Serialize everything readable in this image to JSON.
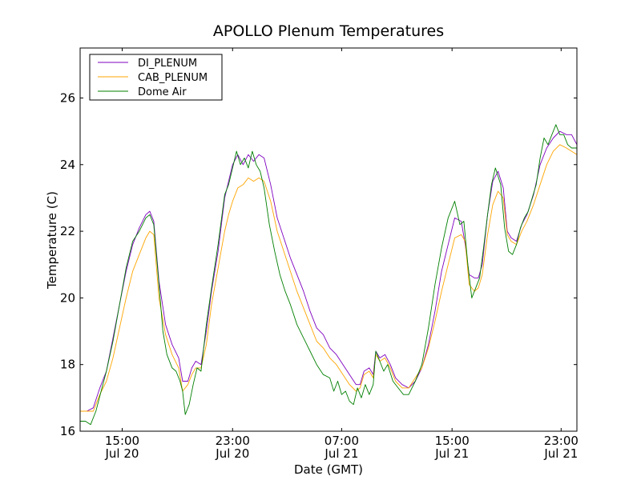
{
  "chart_data": {
    "type": "line",
    "title": "APOLLO Plenum Temperatures",
    "xlabel": "Date (GMT)",
    "ylabel": "Temperature (C)",
    "ylim": [
      16,
      27.5
    ],
    "xlim": [
      0,
      37.8
    ],
    "yticks": [
      16,
      18,
      20,
      22,
      24,
      26
    ],
    "xticks": [
      {
        "x": 3.2,
        "time": "15:00",
        "date": "Jul 20"
      },
      {
        "x": 11.6,
        "time": "23:00",
        "date": "Jul 20"
      },
      {
        "x": 19.9,
        "time": "07:00",
        "date": "Jul 21"
      },
      {
        "x": 28.3,
        "time": "15:00",
        "date": "Jul 21"
      },
      {
        "x": 36.6,
        "time": "23:00",
        "date": "Jul 21"
      }
    ],
    "legend_position": "top-left",
    "series": [
      {
        "name": "DI_PLENUM",
        "color": "#7f00bf",
        "x": [
          0,
          0.5,
          1,
          1.5,
          2,
          2.5,
          3,
          3.5,
          4,
          4.5,
          5,
          5.3,
          5.6,
          6,
          6.5,
          7,
          7.5,
          7.8,
          8.2,
          8.5,
          8.8,
          9.2,
          9.6,
          10,
          10.5,
          11,
          11.3,
          11.6,
          12,
          12.4,
          12.8,
          13.2,
          13.6,
          14,
          14.5,
          15,
          15.5,
          16,
          16.5,
          17,
          17.5,
          18,
          18.5,
          19,
          19.5,
          20,
          20.5,
          21,
          21.3,
          21.6,
          22,
          22.3,
          22.5,
          22.8,
          23.2,
          23.6,
          24,
          24.5,
          25,
          25.5,
          26,
          26.5,
          27,
          27.5,
          28,
          28.5,
          29,
          29.3,
          29.6,
          30,
          30.3,
          30.6,
          31,
          31.4,
          31.8,
          32.2,
          32.5,
          32.8,
          33.2,
          33.6,
          34,
          34.5,
          35,
          35.5,
          36,
          36.5,
          37,
          37.4,
          37.8
        ],
        "values": [
          16.6,
          16.6,
          16.7,
          17.3,
          17.8,
          18.8,
          19.8,
          20.8,
          21.6,
          22.1,
          22.5,
          22.6,
          22.3,
          20.5,
          19.2,
          18.6,
          18.2,
          17.5,
          17.5,
          17.9,
          18.1,
          18.0,
          19.0,
          20.2,
          21.4,
          23.0,
          23.5,
          24.0,
          24.3,
          24.0,
          24.3,
          24.1,
          24.3,
          24.2,
          23.4,
          22.4,
          21.8,
          21.2,
          20.7,
          20.2,
          19.6,
          19.1,
          18.9,
          18.5,
          18.3,
          18.0,
          17.7,
          17.4,
          17.4,
          17.8,
          17.9,
          17.7,
          18.4,
          18.2,
          18.3,
          18.0,
          17.6,
          17.4,
          17.3,
          17.5,
          17.9,
          18.6,
          19.6,
          20.8,
          21.6,
          22.4,
          22.3,
          21.6,
          20.7,
          20.6,
          20.6,
          21.0,
          22.5,
          23.5,
          23.8,
          23.3,
          22.0,
          21.8,
          21.7,
          22.2,
          22.5,
          23.1,
          24.0,
          24.5,
          24.8,
          25.0,
          24.9,
          24.9,
          24.6
        ]
      },
      {
        "name": "CAB_PLENUM",
        "color": "#ffa500",
        "x": [
          0,
          0.5,
          1,
          1.5,
          2,
          2.5,
          3,
          3.5,
          4,
          4.5,
          5,
          5.3,
          5.6,
          6,
          6.5,
          7,
          7.5,
          7.8,
          8.2,
          8.5,
          8.8,
          9.2,
          9.6,
          10,
          10.5,
          11,
          11.3,
          11.6,
          12,
          12.4,
          12.8,
          13.2,
          13.6,
          14,
          14.5,
          15,
          15.5,
          16,
          16.5,
          17,
          17.5,
          18,
          18.5,
          19,
          19.5,
          20,
          20.5,
          21,
          21.3,
          21.6,
          22,
          22.3,
          22.5,
          22.8,
          23.2,
          23.6,
          24,
          24.5,
          25,
          25.5,
          26,
          26.5,
          27,
          27.5,
          28,
          28.5,
          29,
          29.3,
          29.6,
          30,
          30.3,
          30.6,
          31,
          31.4,
          31.8,
          32.2,
          32.5,
          32.8,
          33.2,
          33.6,
          34,
          34.5,
          35,
          35.5,
          36,
          36.5,
          37,
          37.4,
          37.8
        ],
        "values": [
          16.6,
          16.6,
          16.6,
          17.1,
          17.5,
          18.2,
          19.1,
          20.0,
          20.8,
          21.3,
          21.8,
          22.0,
          21.9,
          20.0,
          18.9,
          18.3,
          17.9,
          17.2,
          17.4,
          17.7,
          17.9,
          17.9,
          18.6,
          19.8,
          20.9,
          22.0,
          22.5,
          22.9,
          23.3,
          23.4,
          23.6,
          23.5,
          23.6,
          23.5,
          22.9,
          22.0,
          21.4,
          20.8,
          20.2,
          19.7,
          19.2,
          18.7,
          18.5,
          18.2,
          18.0,
          17.7,
          17.4,
          17.2,
          17.3,
          17.7,
          17.8,
          17.6,
          18.3,
          18.1,
          18.2,
          17.9,
          17.5,
          17.3,
          17.3,
          17.6,
          17.9,
          18.5,
          19.3,
          20.2,
          21.0,
          21.8,
          21.9,
          21.7,
          20.4,
          20.2,
          20.3,
          20.7,
          21.9,
          22.8,
          23.2,
          23.0,
          21.9,
          21.7,
          21.6,
          22.0,
          22.3,
          22.8,
          23.4,
          24.0,
          24.4,
          24.6,
          24.5,
          24.4,
          24.3
        ]
      },
      {
        "name": "Dome Air",
        "color": "#007f00",
        "x": [
          0,
          0.4,
          0.8,
          1.2,
          1.6,
          2,
          2.5,
          3,
          3.5,
          4,
          4.5,
          5,
          5.3,
          5.6,
          6,
          6.3,
          6.6,
          7,
          7.3,
          7.6,
          7.8,
          8,
          8.3,
          8.6,
          8.9,
          9.2,
          9.6,
          10,
          10.5,
          11,
          11.3,
          11.6,
          11.9,
          12.2,
          12.5,
          12.8,
          13.1,
          13.4,
          13.7,
          14,
          14.4,
          14.8,
          15.2,
          15.6,
          16,
          16.5,
          17,
          17.5,
          18,
          18.5,
          19,
          19.3,
          19.6,
          19.9,
          20.2,
          20.5,
          20.8,
          21.1,
          21.4,
          21.7,
          22,
          22.3,
          22.5,
          22.8,
          23.1,
          23.4,
          23.8,
          24.2,
          24.6,
          25,
          25.5,
          26,
          26.5,
          27,
          27.5,
          28,
          28.5,
          28.9,
          29.2,
          29.5,
          29.8,
          30.1,
          30.4,
          30.7,
          31,
          31.3,
          31.6,
          32,
          32.3,
          32.6,
          32.9,
          33.2,
          33.5,
          33.8,
          34.1,
          34.4,
          34.7,
          35,
          35.3,
          35.6,
          35.9,
          36.2,
          36.5,
          36.8,
          37.1,
          37.4,
          37.8
        ],
        "values": [
          16.3,
          16.3,
          16.2,
          16.6,
          17.2,
          17.8,
          18.7,
          19.8,
          20.9,
          21.7,
          22.0,
          22.4,
          22.5,
          22.2,
          20.4,
          19.0,
          18.3,
          17.9,
          17.8,
          17.5,
          17.2,
          16.5,
          16.8,
          17.4,
          17.9,
          17.8,
          19.2,
          20.3,
          21.6,
          23.1,
          23.4,
          23.9,
          24.4,
          24.0,
          24.2,
          23.9,
          24.4,
          24.0,
          23.8,
          23.3,
          22.2,
          21.4,
          20.7,
          20.2,
          19.8,
          19.2,
          18.8,
          18.4,
          18.0,
          17.7,
          17.6,
          17.2,
          17.5,
          17.1,
          17.2,
          16.9,
          16.8,
          17.3,
          17.0,
          17.4,
          17.1,
          17.4,
          18.4,
          18.1,
          17.8,
          18.0,
          17.5,
          17.3,
          17.1,
          17.1,
          17.5,
          18.0,
          19.1,
          20.4,
          21.5,
          22.4,
          22.9,
          22.2,
          22.3,
          21.0,
          20.0,
          20.3,
          20.6,
          21.5,
          22.5,
          23.4,
          23.9,
          23.4,
          22.1,
          21.4,
          21.3,
          21.6,
          22.1,
          22.4,
          22.6,
          23.0,
          23.4,
          24.2,
          24.8,
          24.6,
          24.9,
          25.2,
          24.9,
          24.9,
          24.6,
          24.5,
          24.5
        ]
      }
    ]
  }
}
